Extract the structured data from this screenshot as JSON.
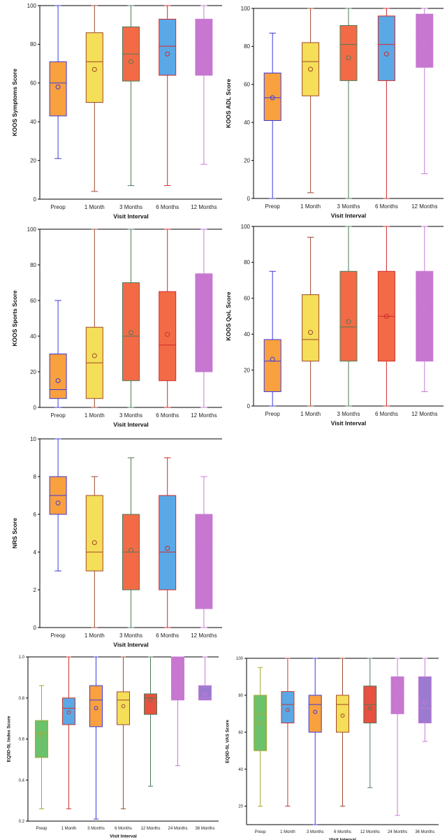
{
  "chart_data": [
    {
      "type": "boxplot",
      "title": "",
      "xlabel": "Visit Interval",
      "ylabel": "KOOS Symptoms Score",
      "ylim": [
        0,
        100
      ],
      "yticks": [
        "0",
        "20",
        "40",
        "60",
        "80",
        "100"
      ],
      "categories": [
        "Preop",
        "1 Month",
        "3 Months",
        "6 Months",
        "12 Months"
      ],
      "colors": [
        "#F9A03F",
        "#F5DE58",
        "#F26B46",
        "#5AA8E6",
        "#C777D0"
      ],
      "whisker_colors": [
        "#3A3AE0",
        "#9E4A2B",
        "#4E7A5A",
        "#D02A2A",
        "#C77AD6"
      ],
      "boxes": [
        {
          "min": 21,
          "q1": 43,
          "median": 60,
          "q3": 71,
          "max": 100,
          "mean": 58
        },
        {
          "min": 4,
          "q1": 50,
          "median": 71,
          "q3": 86,
          "max": 100,
          "mean": 67
        },
        {
          "min": 7,
          "q1": 61,
          "median": 75,
          "q3": 89,
          "max": 100,
          "mean": 71
        },
        {
          "min": 7,
          "q1": 64,
          "median": 79,
          "q3": 93,
          "max": 100,
          "mean": 75
        },
        {
          "min": 18,
          "q1": 64,
          "median": 79,
          "q3": 93,
          "max": 100,
          "mean": 76
        }
      ]
    },
    {
      "type": "boxplot",
      "title": "",
      "xlabel": "Visit Interval",
      "ylabel": "KOOS ADL Score",
      "ylim": [
        0,
        100
      ],
      "yticks": [
        "0",
        "20",
        "40",
        "60",
        "80",
        "100"
      ],
      "categories": [
        "Preop",
        "1 Month",
        "3 Months",
        "6 Months",
        "12 Months"
      ],
      "colors": [
        "#F9A03F",
        "#F5DE58",
        "#F26B46",
        "#5AA8E6",
        "#C777D0"
      ],
      "whisker_colors": [
        "#3A3AE0",
        "#9E4A2B",
        "#4E7A5A",
        "#D02A2A",
        "#C77AD6"
      ],
      "boxes": [
        {
          "min": 0,
          "q1": 41,
          "median": 53,
          "q3": 66,
          "max": 87,
          "mean": 53
        },
        {
          "min": 3,
          "q1": 54,
          "median": 72,
          "q3": 82,
          "max": 100,
          "mean": 68
        },
        {
          "min": 0,
          "q1": 62,
          "median": 81,
          "q3": 91,
          "max": 100,
          "mean": 74
        },
        {
          "min": 0,
          "q1": 62,
          "median": 81,
          "q3": 96,
          "max": 100,
          "mean": 76
        },
        {
          "min": 13,
          "q1": 69,
          "median": 85,
          "q3": 97,
          "max": 100,
          "mean": 80
        }
      ]
    },
    {
      "type": "boxplot",
      "title": "",
      "xlabel": "Visit Interval",
      "ylabel": "KOOS Sports Score",
      "ylim": [
        0,
        100
      ],
      "yticks": [
        "0",
        "20",
        "40",
        "60",
        "80",
        "100"
      ],
      "categories": [
        "Preop",
        "1 Month",
        "3 Months",
        "6 Months",
        "12 Months"
      ],
      "colors": [
        "#F9A03F",
        "#F5DE58",
        "#F26B46",
        "#F26B46",
        "#C777D0"
      ],
      "whisker_colors": [
        "#3A3AE0",
        "#9E4A2B",
        "#4E7A5A",
        "#D02A2A",
        "#C77AD6"
      ],
      "boxes": [
        {
          "min": 0,
          "q1": 5,
          "median": 10,
          "q3": 30,
          "max": 60,
          "mean": 15
        },
        {
          "min": 0,
          "q1": 5,
          "median": 25,
          "q3": 45,
          "max": 100,
          "mean": 29
        },
        {
          "min": 0,
          "q1": 15,
          "median": 40,
          "q3": 70,
          "max": 100,
          "mean": 42
        },
        {
          "min": 0,
          "q1": 15,
          "median": 35,
          "q3": 65,
          "max": 100,
          "mean": 41
        },
        {
          "min": 0,
          "q1": 20,
          "median": 40,
          "q3": 75,
          "max": 100,
          "mean": 46
        }
      ]
    },
    {
      "type": "boxplot",
      "title": "",
      "xlabel": "Visit Interval",
      "ylabel": "KOOS QoL Score",
      "ylim": [
        0,
        100
      ],
      "yticks": [
        "0",
        "20",
        "40",
        "60",
        "80",
        "100"
      ],
      "categories": [
        "Preop",
        "1 Month",
        "3 Months",
        "6 Months",
        "12 Months"
      ],
      "colors": [
        "#F9A03F",
        "#F5DE58",
        "#F26B46",
        "#F26B46",
        "#C777D0"
      ],
      "whisker_colors": [
        "#3A3AE0",
        "#9E4A2B",
        "#4E7A5A",
        "#D02A2A",
        "#C77AD6"
      ],
      "boxes": [
        {
          "min": 0,
          "q1": 8,
          "median": 25,
          "q3": 37,
          "max": 75,
          "mean": 26
        },
        {
          "min": 0,
          "q1": 25,
          "median": 37,
          "q3": 62,
          "max": 94,
          "mean": 41
        },
        {
          "min": 0,
          "q1": 25,
          "median": 44,
          "q3": 75,
          "max": 100,
          "mean": 47
        },
        {
          "min": 0,
          "q1": 25,
          "median": 50,
          "q3": 75,
          "max": 100,
          "mean": 50
        },
        {
          "min": 8,
          "q1": 25,
          "median": 62,
          "q3": 75,
          "max": 100,
          "mean": 55
        }
      ]
    },
    {
      "type": "boxplot",
      "title": "",
      "xlabel": "Visit Interval",
      "ylabel": "NRS Score",
      "ylim": [
        0,
        10
      ],
      "yticks": [
        "0",
        "2",
        "4",
        "6",
        "8",
        "10"
      ],
      "categories": [
        "Preop",
        "1 Month",
        "3 Months",
        "6 Months",
        "12 Months"
      ],
      "colors": [
        "#F9A03F",
        "#F5DE58",
        "#F26B46",
        "#5AA8E6",
        "#C777D0"
      ],
      "whisker_colors": [
        "#3A3AE0",
        "#9E4A2B",
        "#4E7A5A",
        "#D02A2A",
        "#C77AD6"
      ],
      "boxes": [
        {
          "min": 3,
          "q1": 6,
          "median": 7,
          "q3": 8,
          "max": 10,
          "mean": 6.6
        },
        {
          "min": 0,
          "q1": 3,
          "median": 4,
          "q3": 7,
          "max": 8,
          "mean": 4.5
        },
        {
          "min": 0,
          "q1": 2,
          "median": 4,
          "q3": 6,
          "max": 9,
          "mean": 4.1
        },
        {
          "min": 0,
          "q1": 2,
          "median": 4,
          "q3": 7,
          "max": 9,
          "mean": 4.2
        },
        {
          "min": 0,
          "q1": 1,
          "median": 4,
          "q3": 6,
          "max": 8,
          "mean": 3.9
        }
      ]
    },
    {
      "type": "boxplot",
      "title": "",
      "xlabel": "Visit Interval",
      "ylabel": "EQ5D-5L Index Score",
      "ylim": [
        0.2,
        1.0
      ],
      "yticks": [
        "0.2",
        "0.4",
        "0.6",
        "0.8",
        "1.0"
      ],
      "categories": [
        "Preop",
        "1 Month",
        "3 Months",
        "6 Months",
        "12 Months",
        "24 Months",
        "36 Months"
      ],
      "colors": [
        "#6CC26A",
        "#5AA8E6",
        "#F9A03F",
        "#F5DE58",
        "#E8503F",
        "#C777D0",
        "#9B7BD0"
      ],
      "whisker_colors": [
        "#A7A833",
        "#C9362C",
        "#3A3AE0",
        "#9E4A2B",
        "#4E7A5A",
        "#C77AD6",
        "#C77AD6"
      ],
      "boxes": [
        {
          "min": 0.26,
          "q1": 0.51,
          "median": 0.63,
          "q3": 0.69,
          "max": 0.86,
          "mean": 0.62
        },
        {
          "min": 0.26,
          "q1": 0.67,
          "median": 0.75,
          "q3": 0.8,
          "max": 1.0,
          "mean": 0.73
        },
        {
          "min": 0.21,
          "q1": 0.66,
          "median": 0.79,
          "q3": 0.86,
          "max": 1.0,
          "mean": 0.75
        },
        {
          "min": 0.26,
          "q1": 0.67,
          "median": 0.79,
          "q3": 0.83,
          "max": 1.0,
          "mean": 0.76
        },
        {
          "min": 0.37,
          "q1": 0.72,
          "median": 0.8,
          "q3": 0.82,
          "max": 1.0,
          "mean": 0.79
        },
        {
          "min": 0.47,
          "q1": 0.79,
          "median": 0.83,
          "q3": 1.0,
          "max": 1.0,
          "mean": 0.83
        },
        {
          "min": 0.79,
          "q1": 0.79,
          "median": 0.8,
          "q3": 0.86,
          "max": 1.0,
          "mean": 0.82
        }
      ]
    },
    {
      "type": "boxplot",
      "title": "",
      "xlabel": "Visit Interval",
      "ylabel": "EQ5D-5L VAS Score",
      "ylim": [
        10,
        100
      ],
      "yticks": [
        "20",
        "40",
        "60",
        "80",
        "100"
      ],
      "categories": [
        "Preop",
        "1 Month",
        "3 Months",
        "6 Months",
        "12 Months",
        "24 Months",
        "36 Months"
      ],
      "colors": [
        "#6CC26A",
        "#5AA8E6",
        "#F9A03F",
        "#F5DE58",
        "#E8503F",
        "#C777D0",
        "#9B7BD0"
      ],
      "whisker_colors": [
        "#A7A833",
        "#C9362C",
        "#3A3AE0",
        "#9E4A2B",
        "#4E7A5A",
        "#C77AD6",
        "#C77AD6"
      ],
      "boxes": [
        {
          "min": 20,
          "q1": 50,
          "median": 70,
          "q3": 80,
          "max": 95,
          "mean": 65
        },
        {
          "min": 20,
          "q1": 65,
          "median": 75,
          "q3": 82,
          "max": 100,
          "mean": 72
        },
        {
          "min": 10,
          "q1": 60,
          "median": 75,
          "q3": 80,
          "max": 100,
          "mean": 71
        },
        {
          "min": 20,
          "q1": 60,
          "median": 75,
          "q3": 80,
          "max": 100,
          "mean": 69
        },
        {
          "min": 30,
          "q1": 65,
          "median": 75,
          "q3": 85,
          "max": 100,
          "mean": 73
        },
        {
          "min": 15,
          "q1": 70,
          "median": 80,
          "q3": 90,
          "max": 100,
          "mean": 76
        },
        {
          "min": 55,
          "q1": 65,
          "median": 73,
          "q3": 90,
          "max": 100,
          "mean": 76
        }
      ]
    }
  ]
}
